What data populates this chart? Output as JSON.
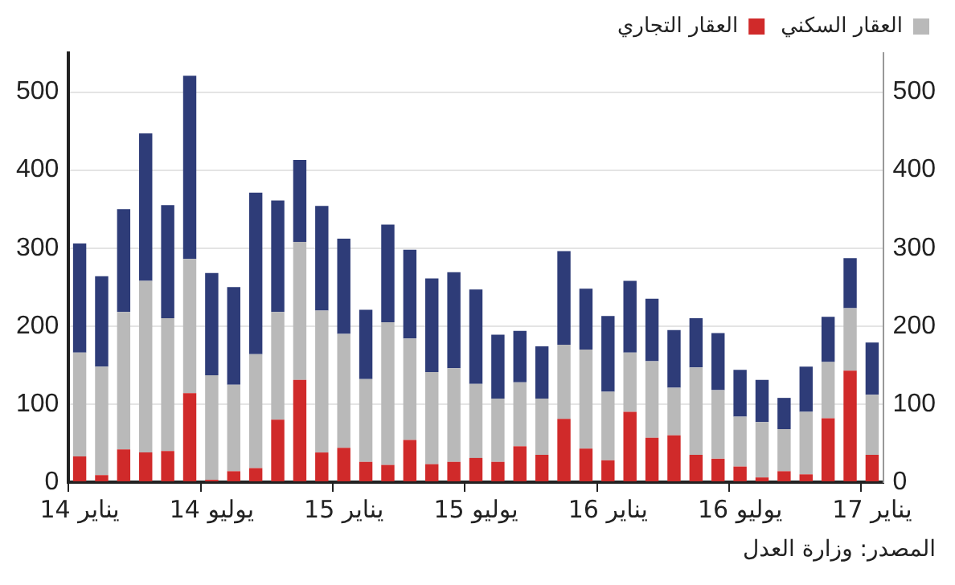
{
  "chart_data": {
    "type": "bar",
    "stacked": true,
    "categories": [
      "يناير 14",
      null,
      null,
      null,
      null,
      null,
      "يوليو 14",
      null,
      null,
      null,
      null,
      null,
      "يناير 15",
      null,
      null,
      null,
      null,
      null,
      "يوليو 15",
      null,
      null,
      null,
      null,
      null,
      "يناير 16",
      null,
      null,
      null,
      null,
      null,
      "يوليو 16",
      null,
      null,
      null,
      null,
      null,
      "يناير 17"
    ],
    "series": [
      {
        "name": "العقار التجاري",
        "color": "#d02a2a",
        "values": [
          33,
          9,
          42,
          38,
          40,
          114,
          3,
          14,
          18,
          80,
          131,
          38,
          44,
          26,
          22,
          54,
          23,
          26,
          31,
          26,
          46,
          35,
          81,
          43,
          28,
          90,
          57,
          60,
          35,
          30,
          20,
          6,
          14,
          10,
          82,
          143,
          35
        ]
      },
      {
        "name": "العقار السكني",
        "color": "#b9b9b9",
        "values": [
          133,
          139,
          176,
          220,
          170,
          172,
          134,
          111,
          146,
          138,
          177,
          182,
          146,
          106,
          183,
          130,
          118,
          120,
          95,
          81,
          82,
          72,
          95,
          127,
          88,
          76,
          98,
          61,
          112,
          88,
          64,
          71,
          54,
          80,
          72,
          80,
          77
        ]
      },
      {
        "color": "#2e3c78",
        "values": [
          140,
          116,
          132,
          189,
          145,
          235,
          131,
          125,
          207,
          143,
          105,
          134,
          122,
          89,
          125,
          114,
          120,
          123,
          121,
          82,
          66,
          67,
          120,
          78,
          97,
          92,
          80,
          74,
          63,
          73,
          60,
          54,
          40,
          58,
          58,
          64,
          67
        ]
      }
    ],
    "ylim": [
      0,
      550
    ],
    "yticks": [
      0,
      100,
      200,
      300,
      400,
      500
    ],
    "y2lim": [
      0,
      550
    ],
    "y2ticks": [
      0,
      100,
      200,
      300,
      400,
      500
    ],
    "grid": "y",
    "legend": "top right",
    "annotations": [
      "المصدر: وزارة العدل"
    ]
  }
}
